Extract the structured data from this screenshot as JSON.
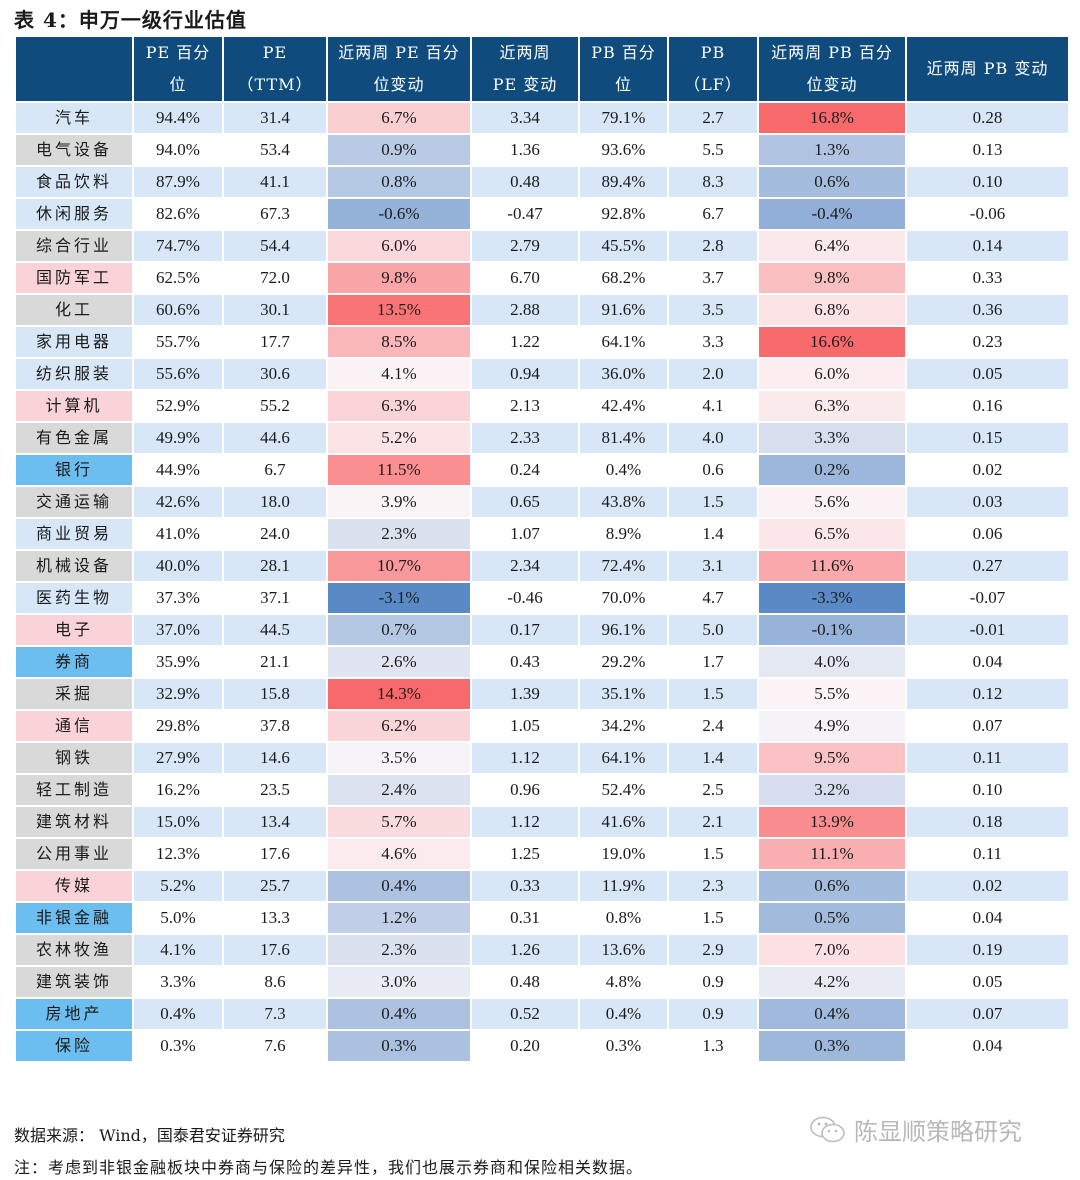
{
  "title": "表 4：申万一级行业估值",
  "headers": [
    "",
    "PE 百分\n位",
    "PE\n（TTM）",
    "近两周 PE 百分\n位变动",
    "近两周\nPE 变动",
    "PB 百分\n位",
    "PB\n（LF）",
    "近两周 PB 百分\n位变动",
    "近两周 PB 变动"
  ],
  "label_colors": {
    "lightblue": "#d7e7f7",
    "gray": "#d9d9d9",
    "pink": "#f9d3d7",
    "blue": "#6cbdf0"
  },
  "heat_colors": {
    "max_red": "#f8696b",
    "mid": "#fbf7fa",
    "min_blue": "#5a8ac6"
  },
  "rows": [
    {
      "name": "汽车",
      "label_color": "lightblue",
      "pe_pct": "94.4%",
      "pe": "31.4",
      "pe_pct_chg": "6.7%",
      "pe_chg": "3.34",
      "pb_pct": "79.1%",
      "pb": "2.7",
      "pb_pct_chg": "16.8%",
      "pb_chg": "0.28"
    },
    {
      "name": "电气设备",
      "label_color": "gray",
      "pe_pct": "94.0%",
      "pe": "53.4",
      "pe_pct_chg": "0.9%",
      "pe_chg": "1.36",
      "pb_pct": "93.6%",
      "pb": "5.5",
      "pb_pct_chg": "1.3%",
      "pb_chg": "0.13"
    },
    {
      "name": "食品饮料",
      "label_color": "lightblue",
      "pe_pct": "87.9%",
      "pe": "41.1",
      "pe_pct_chg": "0.8%",
      "pe_chg": "0.48",
      "pb_pct": "89.4%",
      "pb": "8.3",
      "pb_pct_chg": "0.6%",
      "pb_chg": "0.10"
    },
    {
      "name": "休闲服务",
      "label_color": "lightblue",
      "pe_pct": "82.6%",
      "pe": "67.3",
      "pe_pct_chg": "-0.6%",
      "pe_chg": "-0.47",
      "pb_pct": "92.8%",
      "pb": "6.7",
      "pb_pct_chg": "-0.4%",
      "pb_chg": "-0.06"
    },
    {
      "name": "综合行业",
      "label_color": "gray",
      "pe_pct": "74.7%",
      "pe": "54.4",
      "pe_pct_chg": "6.0%",
      "pe_chg": "2.79",
      "pb_pct": "45.5%",
      "pb": "2.8",
      "pb_pct_chg": "6.4%",
      "pb_chg": "0.14"
    },
    {
      "name": "国防军工",
      "label_color": "pink",
      "pe_pct": "62.5%",
      "pe": "72.0",
      "pe_pct_chg": "9.8%",
      "pe_chg": "6.70",
      "pb_pct": "68.2%",
      "pb": "3.7",
      "pb_pct_chg": "9.8%",
      "pb_chg": "0.33"
    },
    {
      "name": "化工",
      "label_color": "gray",
      "pe_pct": "60.6%",
      "pe": "30.1",
      "pe_pct_chg": "13.5%",
      "pe_chg": "2.88",
      "pb_pct": "91.6%",
      "pb": "3.5",
      "pb_pct_chg": "6.8%",
      "pb_chg": "0.36"
    },
    {
      "name": "家用电器",
      "label_color": "lightblue",
      "pe_pct": "55.7%",
      "pe": "17.7",
      "pe_pct_chg": "8.5%",
      "pe_chg": "1.22",
      "pb_pct": "64.1%",
      "pb": "3.3",
      "pb_pct_chg": "16.6%",
      "pb_chg": "0.23"
    },
    {
      "name": "纺织服装",
      "label_color": "lightblue",
      "pe_pct": "55.6%",
      "pe": "30.6",
      "pe_pct_chg": "4.1%",
      "pe_chg": "0.94",
      "pb_pct": "36.0%",
      "pb": "2.0",
      "pb_pct_chg": "6.0%",
      "pb_chg": "0.05"
    },
    {
      "name": "计算机",
      "label_color": "pink",
      "pe_pct": "52.9%",
      "pe": "55.2",
      "pe_pct_chg": "6.3%",
      "pe_chg": "2.13",
      "pb_pct": "42.4%",
      "pb": "4.1",
      "pb_pct_chg": "6.3%",
      "pb_chg": "0.16"
    },
    {
      "name": "有色金属",
      "label_color": "gray",
      "pe_pct": "49.9%",
      "pe": "44.6",
      "pe_pct_chg": "5.2%",
      "pe_chg": "2.33",
      "pb_pct": "81.4%",
      "pb": "4.0",
      "pb_pct_chg": "3.3%",
      "pb_chg": "0.15"
    },
    {
      "name": "银行",
      "label_color": "blue",
      "pe_pct": "44.9%",
      "pe": "6.7",
      "pe_pct_chg": "11.5%",
      "pe_chg": "0.24",
      "pb_pct": "0.4%",
      "pb": "0.6",
      "pb_pct_chg": "0.2%",
      "pb_chg": "0.02"
    },
    {
      "name": "交通运输",
      "label_color": "gray",
      "pe_pct": "42.6%",
      "pe": "18.0",
      "pe_pct_chg": "3.9%",
      "pe_chg": "0.65",
      "pb_pct": "43.8%",
      "pb": "1.5",
      "pb_pct_chg": "5.6%",
      "pb_chg": "0.03"
    },
    {
      "name": "商业贸易",
      "label_color": "lightblue",
      "pe_pct": "41.0%",
      "pe": "24.0",
      "pe_pct_chg": "2.3%",
      "pe_chg": "1.07",
      "pb_pct": "8.9%",
      "pb": "1.4",
      "pb_pct_chg": "6.5%",
      "pb_chg": "0.06"
    },
    {
      "name": "机械设备",
      "label_color": "gray",
      "pe_pct": "40.0%",
      "pe": "28.1",
      "pe_pct_chg": "10.7%",
      "pe_chg": "2.34",
      "pb_pct": "72.4%",
      "pb": "3.1",
      "pb_pct_chg": "11.6%",
      "pb_chg": "0.27"
    },
    {
      "name": "医药生物",
      "label_color": "lightblue",
      "pe_pct": "37.3%",
      "pe": "37.1",
      "pe_pct_chg": "-3.1%",
      "pe_chg": "-0.46",
      "pb_pct": "70.0%",
      "pb": "4.7",
      "pb_pct_chg": "-3.3%",
      "pb_chg": "-0.07"
    },
    {
      "name": "电子",
      "label_color": "pink",
      "pe_pct": "37.0%",
      "pe": "44.5",
      "pe_pct_chg": "0.7%",
      "pe_chg": "0.17",
      "pb_pct": "96.1%",
      "pb": "5.0",
      "pb_pct_chg": "-0.1%",
      "pb_chg": "-0.01"
    },
    {
      "name": "券商",
      "label_color": "blue",
      "pe_pct": "35.9%",
      "pe": "21.1",
      "pe_pct_chg": "2.6%",
      "pe_chg": "0.43",
      "pb_pct": "29.2%",
      "pb": "1.7",
      "pb_pct_chg": "4.0%",
      "pb_chg": "0.04"
    },
    {
      "name": "采掘",
      "label_color": "gray",
      "pe_pct": "32.9%",
      "pe": "15.8",
      "pe_pct_chg": "14.3%",
      "pe_chg": "1.39",
      "pb_pct": "35.1%",
      "pb": "1.5",
      "pb_pct_chg": "5.5%",
      "pb_chg": "0.12"
    },
    {
      "name": "通信",
      "label_color": "pink",
      "pe_pct": "29.8%",
      "pe": "37.8",
      "pe_pct_chg": "6.2%",
      "pe_chg": "1.05",
      "pb_pct": "34.2%",
      "pb": "2.4",
      "pb_pct_chg": "4.9%",
      "pb_chg": "0.07"
    },
    {
      "name": "钢铁",
      "label_color": "gray",
      "pe_pct": "27.9%",
      "pe": "14.6",
      "pe_pct_chg": "3.5%",
      "pe_chg": "1.12",
      "pb_pct": "64.1%",
      "pb": "1.4",
      "pb_pct_chg": "9.5%",
      "pb_chg": "0.11"
    },
    {
      "name": "轻工制造",
      "label_color": "gray",
      "pe_pct": "16.2%",
      "pe": "23.5",
      "pe_pct_chg": "2.4%",
      "pe_chg": "0.96",
      "pb_pct": "52.4%",
      "pb": "2.5",
      "pb_pct_chg": "3.2%",
      "pb_chg": "0.10"
    },
    {
      "name": "建筑材料",
      "label_color": "gray",
      "pe_pct": "15.0%",
      "pe": "13.4",
      "pe_pct_chg": "5.7%",
      "pe_chg": "1.12",
      "pb_pct": "41.6%",
      "pb": "2.1",
      "pb_pct_chg": "13.9%",
      "pb_chg": "0.18"
    },
    {
      "name": "公用事业",
      "label_color": "gray",
      "pe_pct": "12.3%",
      "pe": "17.6",
      "pe_pct_chg": "4.6%",
      "pe_chg": "1.25",
      "pb_pct": "19.0%",
      "pb": "1.5",
      "pb_pct_chg": "11.1%",
      "pb_chg": "0.11"
    },
    {
      "name": "传媒",
      "label_color": "pink",
      "pe_pct": "5.2%",
      "pe": "25.7",
      "pe_pct_chg": "0.4%",
      "pe_chg": "0.33",
      "pb_pct": "11.9%",
      "pb": "2.3",
      "pb_pct_chg": "0.6%",
      "pb_chg": "0.02"
    },
    {
      "name": "非银金融",
      "label_color": "blue",
      "pe_pct": "5.0%",
      "pe": "13.3",
      "pe_pct_chg": "1.2%",
      "pe_chg": "0.31",
      "pb_pct": "0.8%",
      "pb": "1.5",
      "pb_pct_chg": "0.5%",
      "pb_chg": "0.04"
    },
    {
      "name": "农林牧渔",
      "label_color": "gray",
      "pe_pct": "4.1%",
      "pe": "17.6",
      "pe_pct_chg": "2.3%",
      "pe_chg": "1.26",
      "pb_pct": "13.6%",
      "pb": "2.9",
      "pb_pct_chg": "7.0%",
      "pb_chg": "0.19"
    },
    {
      "name": "建筑装饰",
      "label_color": "gray",
      "pe_pct": "3.3%",
      "pe": "8.6",
      "pe_pct_chg": "3.0%",
      "pe_chg": "0.48",
      "pb_pct": "4.8%",
      "pb": "0.9",
      "pb_pct_chg": "4.2%",
      "pb_chg": "0.05"
    },
    {
      "name": "房地产",
      "label_color": "blue",
      "pe_pct": "0.4%",
      "pe": "7.3",
      "pe_pct_chg": "0.4%",
      "pe_chg": "0.52",
      "pb_pct": "0.4%",
      "pb": "0.9",
      "pb_pct_chg": "0.4%",
      "pb_chg": "0.07"
    },
    {
      "name": "保险",
      "label_color": "blue",
      "pe_pct": "0.3%",
      "pe": "7.6",
      "pe_pct_chg": "0.3%",
      "pe_chg": "0.20",
      "pb_pct": "0.3%",
      "pb": "1.3",
      "pb_pct_chg": "0.3%",
      "pb_chg": "0.04"
    }
  ],
  "footer": {
    "source": "数据来源：  Wind，国泰君安证券研究",
    "note": "注：考虑到非银金融板块中券商与保险的差异性，我们也展示券商和保险相关数据。",
    "watermark": "陈显顺策略研究",
    "watermark_icon": "wechat-icon"
  }
}
